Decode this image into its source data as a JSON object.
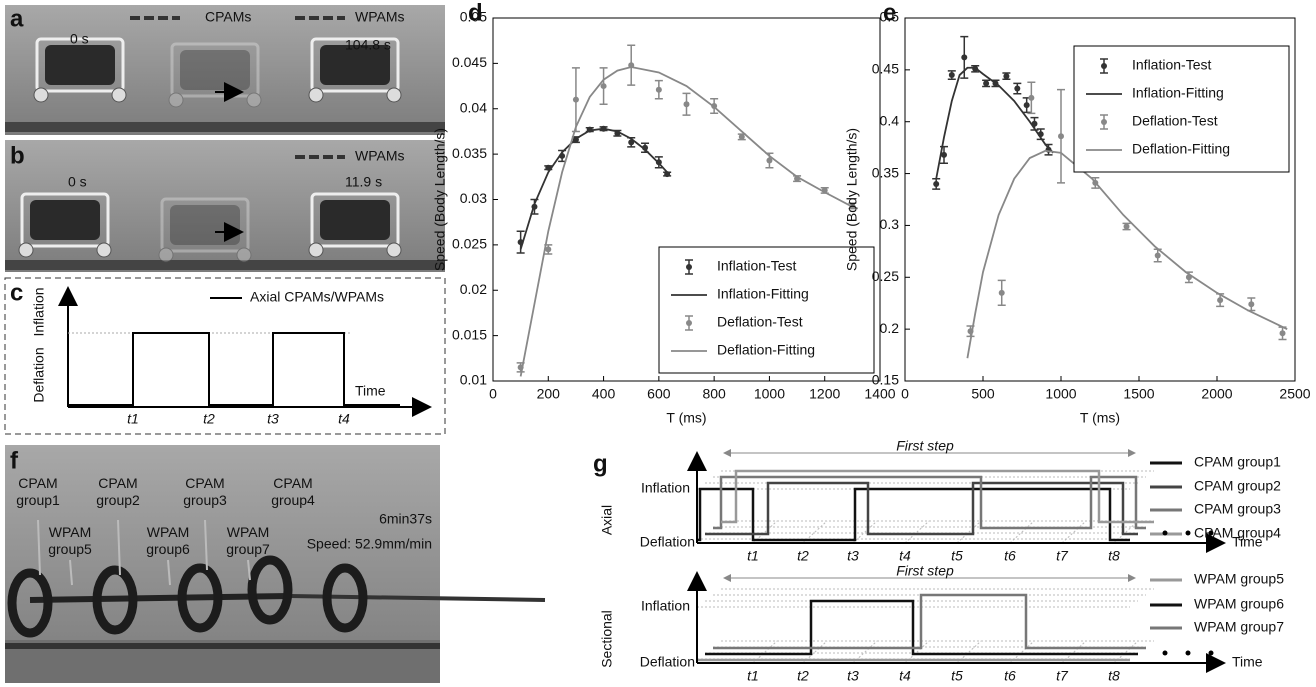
{
  "panels": {
    "a": {
      "label": "a",
      "legend": [
        "CPAMs",
        "WPAMs"
      ],
      "times": [
        "0 s",
        "104.8 s"
      ]
    },
    "b": {
      "label": "b",
      "legend": [
        "WPAMs"
      ],
      "times": [
        "0 s",
        "11.9 s"
      ]
    },
    "c": {
      "label": "c",
      "legend": "Axial CPAMs/WPAMs",
      "y_labels": [
        "Inflation",
        "Deflation"
      ],
      "x_label": "Time",
      "ticks": [
        "t1",
        "t2",
        "t3",
        "t4"
      ]
    },
    "f": {
      "label": "f",
      "cpam": [
        [
          "CPAM",
          "group1"
        ],
        [
          "CPAM",
          "group2"
        ],
        [
          "CPAM",
          "group3"
        ],
        [
          "CPAM",
          "group4"
        ]
      ],
      "wpam": [
        [
          "WPAM",
          "group5"
        ],
        [
          "WPAM",
          "group6"
        ],
        [
          "WPAM",
          "group7"
        ]
      ],
      "time": "6min37s",
      "speed": "Speed: 52.9mm/min"
    },
    "g": {
      "label": "g",
      "axial": {
        "title": "Axial",
        "step": "First step",
        "y_labels": [
          "Inflation",
          "Deflation"
        ],
        "x_label": "Time",
        "ticks": [
          "t1",
          "t2",
          "t3",
          "t4",
          "t5",
          "t6",
          "t7",
          "t8"
        ],
        "legend": [
          "CPAM group1",
          "CPAM group2",
          "CPAM group3",
          "CPAM group4"
        ]
      },
      "sectional": {
        "title": "Sectional",
        "step": "First step",
        "y_labels": [
          "Inflation",
          "Deflation"
        ],
        "x_label": "Time",
        "ticks": [
          "t1",
          "t2",
          "t3",
          "t4",
          "t5",
          "t6",
          "t7",
          "t8"
        ],
        "legend": [
          "WPAM group5",
          "WPAM group6",
          "WPAM group7"
        ]
      }
    }
  },
  "chart_data": [
    {
      "type": "line",
      "panel": "d",
      "xlabel": "T (ms)",
      "ylabel": "Speed (Body Length/s)",
      "xlim": [
        0,
        1400
      ],
      "xticks": [
        0,
        200,
        400,
        600,
        800,
        1000,
        1200,
        1400
      ],
      "ylim": [
        0.01,
        0.05
      ],
      "yticks": [
        0.01,
        0.015,
        0.02,
        0.025,
        0.03,
        0.035,
        0.04,
        0.045,
        0.05
      ],
      "legend": "lower right",
      "series": [
        {
          "name": "Inflation-Test",
          "color": "#333333",
          "marker": "errorbar",
          "x": [
            100,
            150,
            200,
            250,
            300,
            350,
            400,
            450,
            500,
            550,
            600,
            630
          ],
          "values": [
            0.0253,
            0.0292,
            0.0335,
            0.0348,
            0.0366,
            0.0377,
            0.0378,
            0.0373,
            0.0363,
            0.0357,
            0.0341,
            0.0328
          ],
          "errors": [
            0.0012,
            0.0008,
            0.0002,
            0.0006,
            0.0003,
            0.0002,
            0.0002,
            0.0003,
            0.0005,
            0.0005,
            0.0006,
            0.0002
          ]
        },
        {
          "name": "Inflation-Fitting",
          "color": "#333333",
          "marker": "line",
          "x": [
            100,
            150,
            200,
            250,
            300,
            350,
            400,
            450,
            500,
            550,
            600,
            630
          ],
          "values": [
            0.0245,
            0.0295,
            0.033,
            0.0352,
            0.0367,
            0.0376,
            0.0378,
            0.0375,
            0.0367,
            0.0355,
            0.034,
            0.033
          ]
        },
        {
          "name": "Deflation-Test",
          "color": "#888888",
          "marker": "errorbar",
          "x": [
            100,
            200,
            300,
            400,
            500,
            600,
            700,
            800,
            900,
            1000,
            1100,
            1200,
            1300
          ],
          "values": [
            0.0115,
            0.0245,
            0.041,
            0.0425,
            0.0448,
            0.0421,
            0.0405,
            0.0403,
            0.0369,
            0.0343,
            0.0323,
            0.031,
            0.0293
          ],
          "errors": [
            0.0005,
            0.0005,
            0.0035,
            0.002,
            0.0022,
            0.001,
            0.0012,
            0.0008,
            0.0003,
            0.0008,
            0.0003,
            0.0003,
            0.0003
          ]
        },
        {
          "name": "Deflation-Fitting",
          "color": "#888888",
          "marker": "line",
          "x": [
            100,
            150,
            200,
            250,
            300,
            350,
            400,
            450,
            500,
            600,
            700,
            800,
            900,
            1000,
            1100,
            1200,
            1300,
            1320
          ],
          "values": [
            0.0105,
            0.0185,
            0.0265,
            0.033,
            0.038,
            0.0413,
            0.0432,
            0.0442,
            0.0446,
            0.044,
            0.0425,
            0.0402,
            0.0375,
            0.0348,
            0.0325,
            0.0308,
            0.0292,
            0.029
          ]
        }
      ]
    },
    {
      "type": "line",
      "panel": "e",
      "xlabel": "T (ms)",
      "ylabel": "Speed (Body Length/s)",
      "xlim": [
        0,
        2500
      ],
      "xticks": [
        0,
        500,
        1000,
        1500,
        2000,
        2500
      ],
      "ylim": [
        0.15,
        0.5
      ],
      "yticks": [
        0.15,
        0.2,
        0.25,
        0.3,
        0.35,
        0.4,
        0.45,
        0.5
      ],
      "legend": "upper right",
      "series": [
        {
          "name": "Inflation-Test",
          "color": "#333333",
          "marker": "errorbar",
          "x": [
            200,
            250,
            300,
            380,
            450,
            520,
            580,
            650,
            720,
            780,
            830,
            870,
            920
          ],
          "values": [
            0.34,
            0.368,
            0.445,
            0.462,
            0.451,
            0.437,
            0.437,
            0.444,
            0.432,
            0.416,
            0.398,
            0.388,
            0.373
          ],
          "errors": [
            0.005,
            0.008,
            0.004,
            0.02,
            0.003,
            0.003,
            0.003,
            0.003,
            0.005,
            0.007,
            0.006,
            0.005,
            0.005
          ]
        },
        {
          "name": "Inflation-Fitting",
          "color": "#333333",
          "marker": "line",
          "x": [
            200,
            250,
            300,
            350,
            400,
            450,
            500,
            600,
            700,
            800,
            900,
            950
          ],
          "values": [
            0.345,
            0.385,
            0.42,
            0.445,
            0.452,
            0.452,
            0.446,
            0.435,
            0.42,
            0.4,
            0.378,
            0.37
          ]
        },
        {
          "name": "Deflation-Test",
          "color": "#888888",
          "marker": "errorbar",
          "x": [
            420,
            620,
            810,
            1000,
            1220,
            1420,
            1620,
            1820,
            2020,
            2220,
            2420
          ],
          "values": [
            0.198,
            0.235,
            0.423,
            0.386,
            0.341,
            0.299,
            0.271,
            0.25,
            0.228,
            0.224,
            0.196
          ],
          "errors": [
            0.005,
            0.012,
            0.015,
            0.045,
            0.005,
            0.003,
            0.006,
            0.005,
            0.006,
            0.006,
            0.006
          ]
        },
        {
          "name": "Deflation-Fitting",
          "color": "#888888",
          "marker": "line",
          "x": [
            400,
            450,
            500,
            600,
            700,
            800,
            900,
            1000,
            1200,
            1400,
            1600,
            1800,
            2000,
            2200,
            2450
          ],
          "values": [
            0.172,
            0.215,
            0.255,
            0.31,
            0.345,
            0.365,
            0.372,
            0.37,
            0.345,
            0.31,
            0.28,
            0.255,
            0.235,
            0.218,
            0.2
          ]
        }
      ]
    }
  ]
}
